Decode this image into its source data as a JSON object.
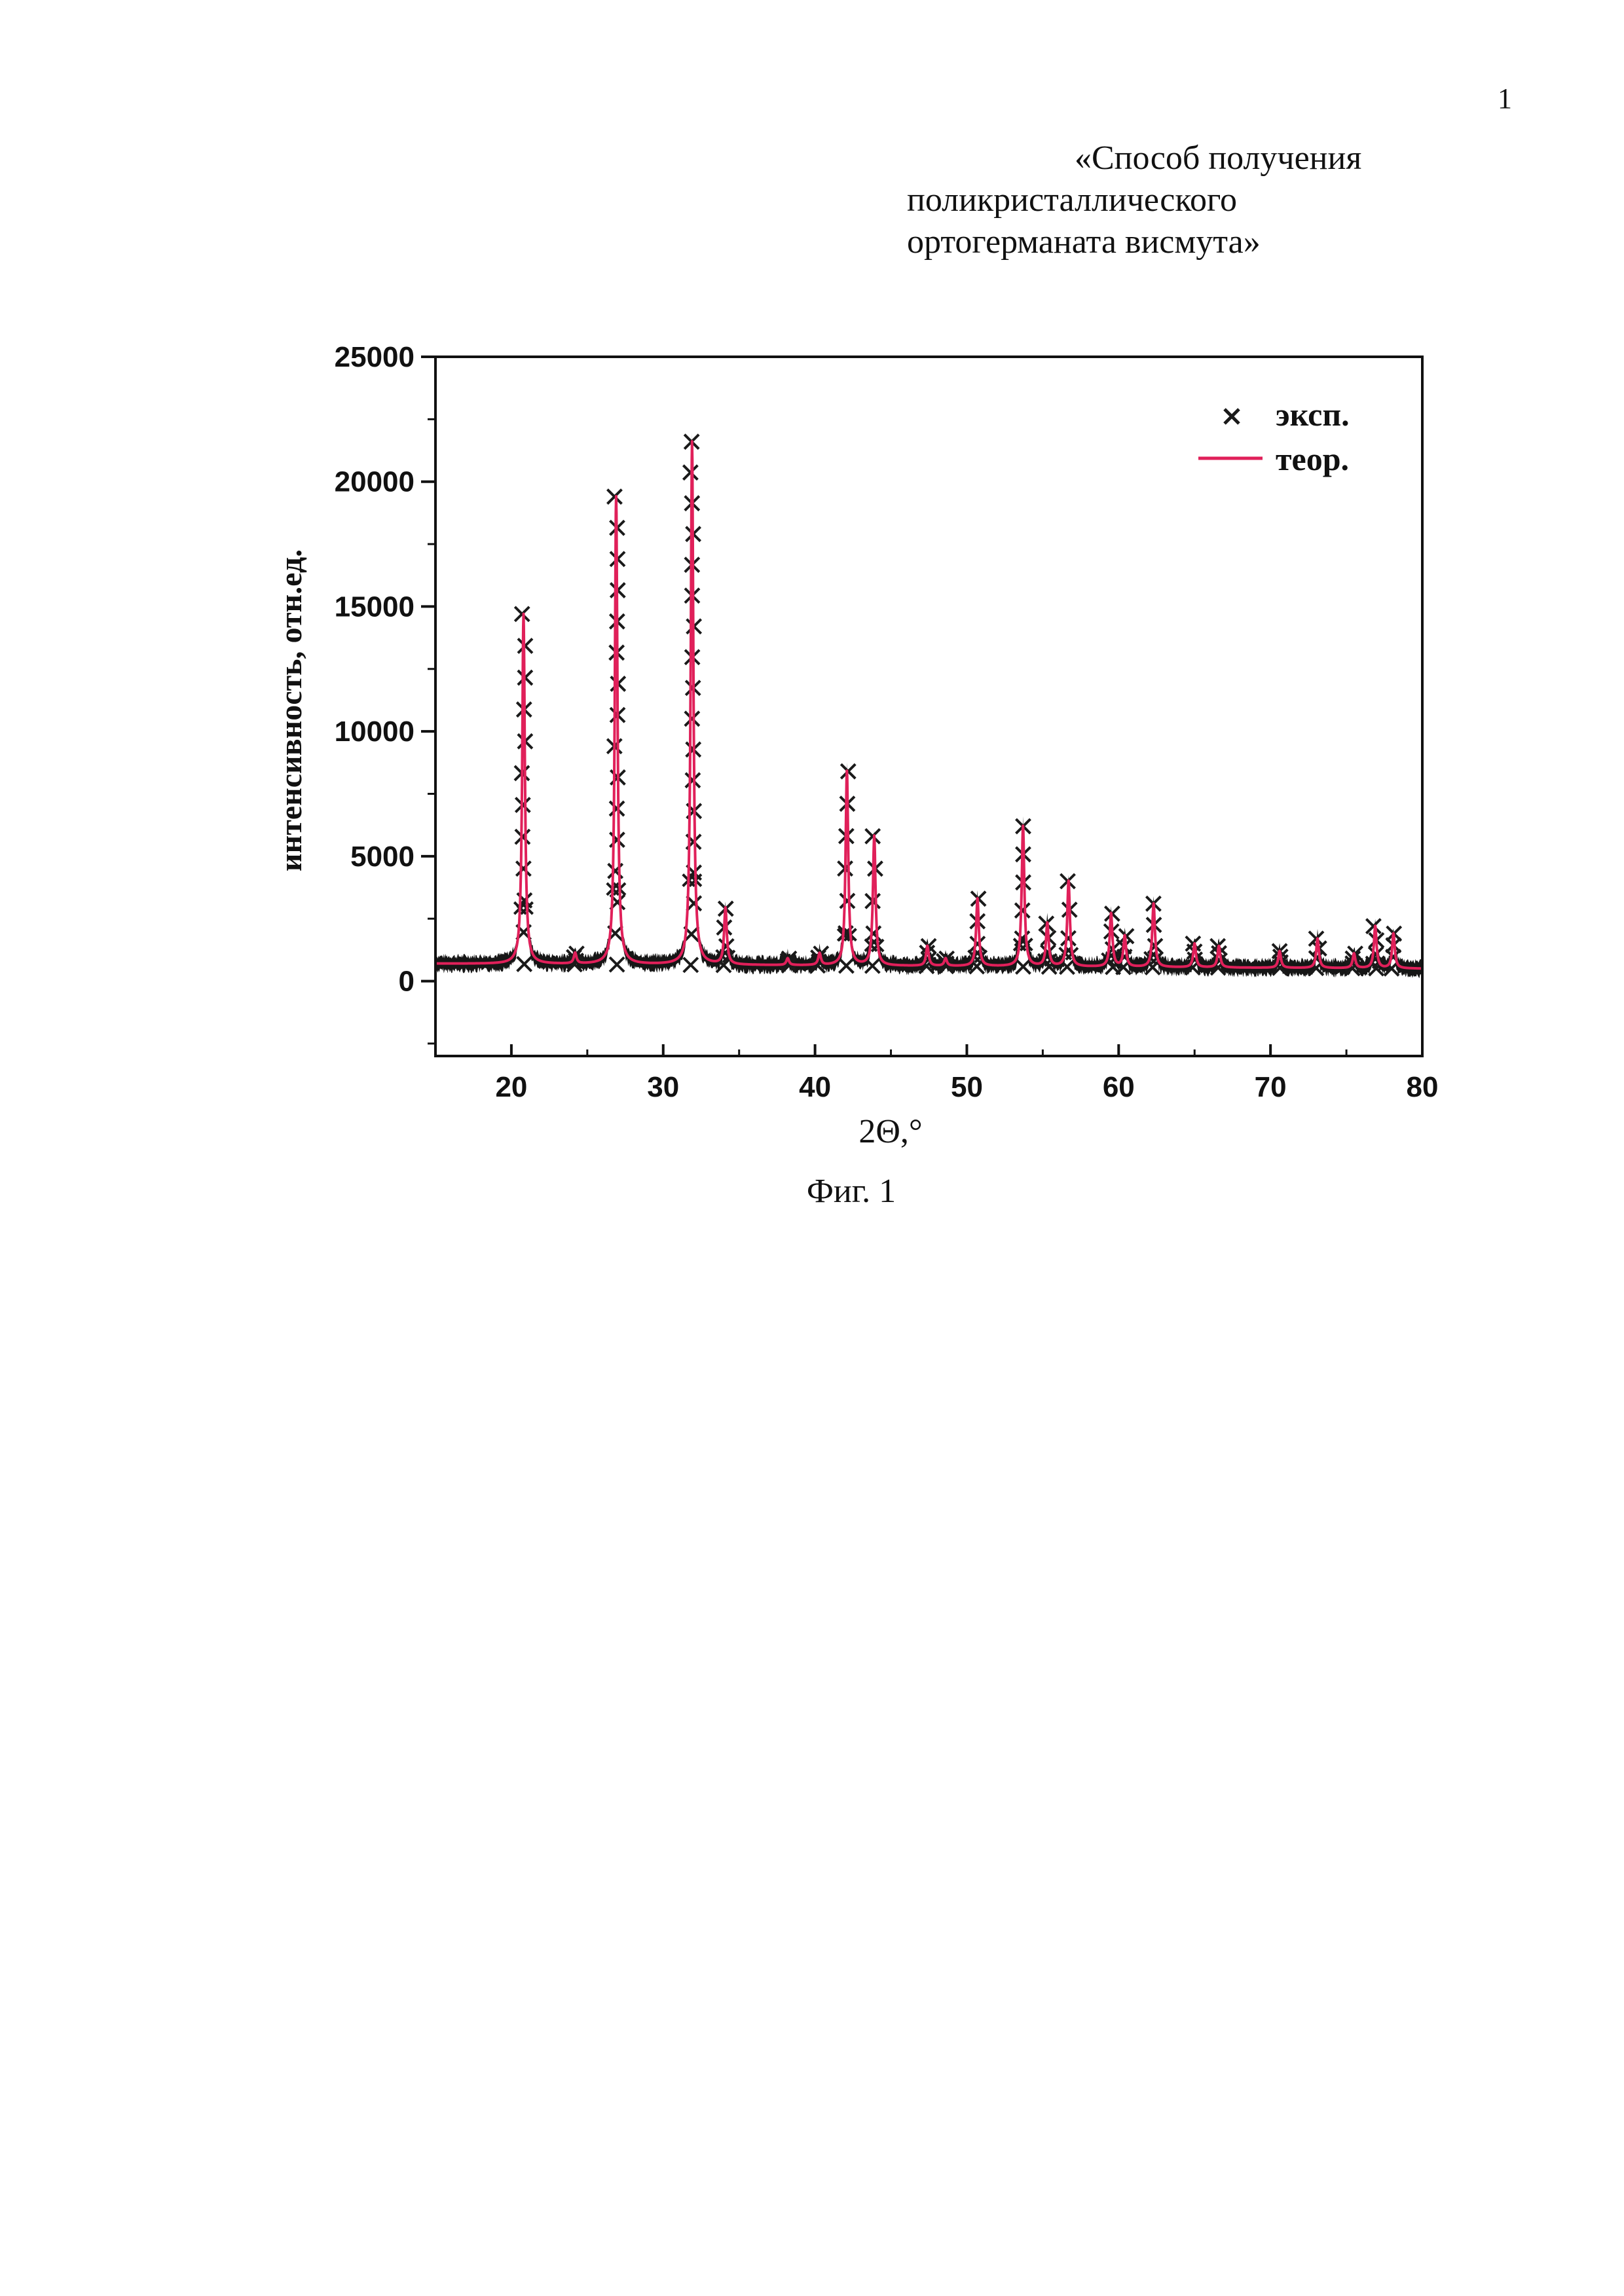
{
  "page": {
    "number": "1",
    "title_lines": [
      "«Способ получения",
      "поликристаллического",
      "ортогерманата висмута»"
    ],
    "caption": "Фиг. 1"
  },
  "chart_data": {
    "type": "scatter",
    "xlabel": "2Θ,°",
    "ylabel": "интенсивность, отн.ед.",
    "xlim": [
      15,
      80
    ],
    "ylim": [
      -3000,
      25000
    ],
    "x_ticks": [
      20,
      30,
      40,
      50,
      60,
      70,
      80
    ],
    "y_ticks": [
      0,
      5000,
      10000,
      15000,
      20000,
      25000
    ],
    "legend_position": "top-right",
    "colors": {
      "experimental": "#1a1a1a",
      "theoretical": "#e0205a"
    },
    "baseline": {
      "left": 700,
      "right": 500
    },
    "peak_width_deg": 0.18,
    "series": [
      {
        "name": "эксп.",
        "marker": "x"
      },
      {
        "name": "теор.",
        "marker": "line"
      }
    ],
    "peaks": [
      {
        "x": 20.8,
        "y": 14700
      },
      {
        "x": 24.2,
        "y": 1100
      },
      {
        "x": 26.9,
        "y": 19400
      },
      {
        "x": 31.9,
        "y": 21600
      },
      {
        "x": 34.1,
        "y": 2900
      },
      {
        "x": 38.2,
        "y": 900
      },
      {
        "x": 40.3,
        "y": 1100
      },
      {
        "x": 42.1,
        "y": 8400
      },
      {
        "x": 43.9,
        "y": 5800
      },
      {
        "x": 47.4,
        "y": 1400
      },
      {
        "x": 48.6,
        "y": 900
      },
      {
        "x": 50.7,
        "y": 3300
      },
      {
        "x": 53.7,
        "y": 6200
      },
      {
        "x": 55.3,
        "y": 2300
      },
      {
        "x": 56.7,
        "y": 4000
      },
      {
        "x": 59.5,
        "y": 2700
      },
      {
        "x": 60.4,
        "y": 1800
      },
      {
        "x": 62.3,
        "y": 3100
      },
      {
        "x": 65.0,
        "y": 1500
      },
      {
        "x": 66.6,
        "y": 1400
      },
      {
        "x": 70.6,
        "y": 1200
      },
      {
        "x": 73.1,
        "y": 1700
      },
      {
        "x": 75.5,
        "y": 1100
      },
      {
        "x": 76.9,
        "y": 2200
      },
      {
        "x": 78.1,
        "y": 1900
      }
    ]
  }
}
